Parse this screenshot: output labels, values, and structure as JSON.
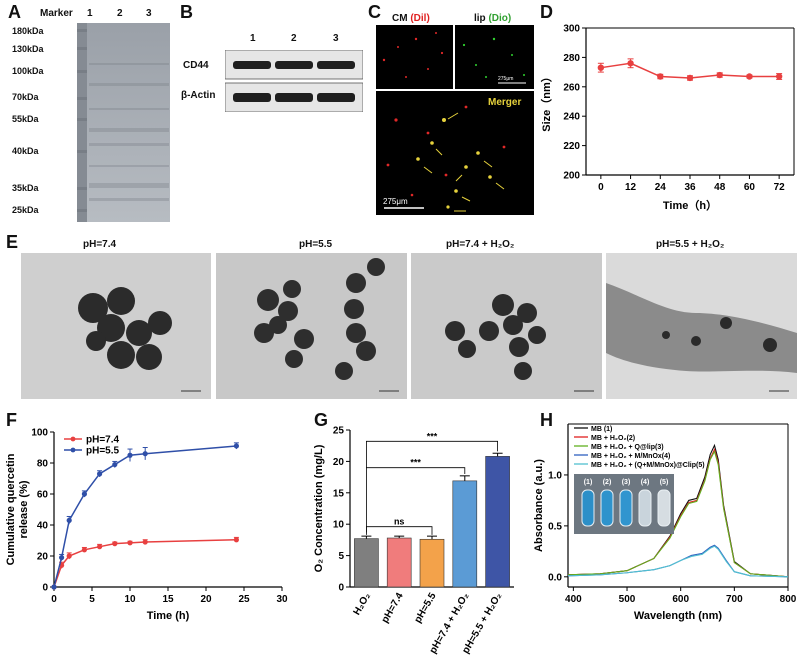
{
  "panels": {
    "A": {
      "letter": "A",
      "header": "Marker",
      "lanes": [
        "1",
        "2",
        "3"
      ],
      "markers": [
        "180kDa",
        "130kDa",
        "100kDa",
        "70kDa",
        "55kDa",
        "40kDa",
        "35kDa",
        "25kDa"
      ]
    },
    "B": {
      "letter": "B",
      "lanes": [
        "1",
        "2",
        "3"
      ],
      "rows": [
        "CD44",
        "β-Actin"
      ]
    },
    "C": {
      "letter": "C",
      "cm_label": "CM",
      "cm_dye": "(Dil)",
      "lip_label": "lip",
      "lip_dye": "(Dio)",
      "merge_label": "Merger",
      "scale_big": "275μm",
      "scale_small": "275μm"
    },
    "D": {
      "letter": "D"
    },
    "E": {
      "letter": "E",
      "titles": [
        "pH=7.4",
        "pH=5.5",
        "pH=7.4 + H₂O₂",
        "pH=5.5 + H₂O₂"
      ]
    },
    "F": {
      "letter": "F"
    },
    "G": {
      "letter": "G"
    },
    "H": {
      "letter": "H",
      "vial_labels": [
        "(1)",
        "(2)",
        "(3)",
        "(4)",
        "(5)"
      ]
    }
  },
  "chart_data": [
    {
      "id": "D",
      "type": "line",
      "xlabel": "Time（h）",
      "ylabel": "Size（nm）",
      "x": [
        0,
        12,
        24,
        36,
        48,
        60,
        72
      ],
      "y": [
        273,
        276,
        267,
        266,
        268,
        267,
        267
      ],
      "err": [
        3,
        3,
        1.5,
        1.5,
        1.5,
        1,
        2
      ],
      "xlim": [
        -6,
        78
      ],
      "ylim": [
        200,
        300
      ],
      "xticks": [
        0,
        12,
        24,
        36,
        48,
        60,
        72
      ],
      "yticks": [
        200,
        220,
        240,
        260,
        280,
        300
      ],
      "color": "#e84040"
    },
    {
      "id": "F",
      "type": "line",
      "xlabel": "Time (h)",
      "ylabel": "Cumulative quercetin release (%)",
      "xlim": [
        0,
        30
      ],
      "ylim": [
        0,
        100
      ],
      "xticks": [
        0,
        5,
        10,
        15,
        20,
        25,
        30
      ],
      "yticks": [
        0,
        20,
        40,
        60,
        80,
        100
      ],
      "legend_position": "top-left",
      "series": [
        {
          "name": "pH=7.4",
          "color": "#e84040",
          "x": [
            0,
            1,
            2,
            4,
            6,
            8,
            10,
            12,
            24
          ],
          "y": [
            0,
            14,
            20,
            24,
            26,
            28,
            28.5,
            29,
            30.5
          ],
          "err": [
            0,
            2,
            2,
            1.5,
            1.5,
            1,
            1,
            1.5,
            1.5
          ]
        },
        {
          "name": "pH=5.5",
          "color": "#2f4fa8",
          "x": [
            0,
            1,
            2,
            4,
            6,
            8,
            10,
            12,
            24
          ],
          "y": [
            0,
            19,
            43,
            60,
            73,
            79,
            85,
            86,
            91
          ],
          "err": [
            0,
            2,
            2.5,
            2,
            2,
            2,
            4,
            4,
            2
          ]
        }
      ]
    },
    {
      "id": "G",
      "type": "bar",
      "ylabel": "O₂ Concentration (mg/L)",
      "categories": [
        "H₂O₂",
        "pH=7.4",
        "pH=5.5",
        "pH=7.4 + H₂O₂",
        "pH=5.5 + H₂O₂"
      ],
      "values": [
        7.7,
        7.8,
        7.6,
        16.9,
        20.8
      ],
      "err": [
        0.4,
        0.3,
        0.5,
        0.8,
        0.5
      ],
      "colors": [
        "#7f7f7f",
        "#f07c7c",
        "#f3a24a",
        "#5b9bd5",
        "#3e55a6"
      ],
      "ylim": [
        0,
        25
      ],
      "yticks": [
        0,
        5,
        10,
        15,
        20,
        25
      ],
      "annotations": [
        {
          "label": "ns",
          "from": 0,
          "to": 2
        },
        {
          "label": "***",
          "from": 0,
          "to": 3
        },
        {
          "label": "***",
          "from": 0,
          "to": 4
        }
      ]
    },
    {
      "id": "H",
      "type": "line",
      "xlabel": "Wavelength (nm)",
      "ylabel": "Absorbance (a.u.)",
      "xlim": [
        390,
        800
      ],
      "ylim": [
        -0.1,
        1.5
      ],
      "xticks": [
        400,
        500,
        600,
        700,
        800
      ],
      "yticks": [
        0.0,
        0.5,
        1.0
      ],
      "legend_position": "top-left",
      "series": [
        {
          "name": "MB (1)",
          "color": "#111111",
          "x": [
            390,
            450,
            500,
            550,
            580,
            600,
            615,
            630,
            645,
            655,
            663,
            670,
            680,
            700,
            730,
            800
          ],
          "y": [
            0.02,
            0.03,
            0.06,
            0.18,
            0.4,
            0.62,
            0.75,
            0.77,
            0.98,
            1.2,
            1.29,
            1.15,
            0.7,
            0.15,
            0.03,
            0.0
          ]
        },
        {
          "name": "MB + H₂O₂(2)",
          "color": "#e02020",
          "x": [
            390,
            450,
            500,
            550,
            580,
            600,
            615,
            630,
            645,
            655,
            663,
            670,
            680,
            700,
            730,
            800
          ],
          "y": [
            0.02,
            0.03,
            0.06,
            0.18,
            0.39,
            0.6,
            0.73,
            0.75,
            0.95,
            1.16,
            1.25,
            1.12,
            0.68,
            0.14,
            0.03,
            0.0
          ]
        },
        {
          "name": "MB + H₂O₂ + Q@lip(3)",
          "color": "#60b020",
          "x": [
            390,
            450,
            500,
            550,
            580,
            600,
            615,
            630,
            645,
            655,
            663,
            670,
            680,
            700,
            730,
            800
          ],
          "y": [
            0.02,
            0.03,
            0.06,
            0.18,
            0.38,
            0.59,
            0.72,
            0.74,
            0.94,
            1.15,
            1.23,
            1.1,
            0.67,
            0.14,
            0.03,
            0.0
          ]
        },
        {
          "name": "MB + H₂O₂ + M/MnOx(4)",
          "color": "#3060c0",
          "x": [
            390,
            450,
            500,
            550,
            580,
            600,
            620,
            640,
            655,
            663,
            670,
            685,
            700,
            730,
            800
          ],
          "y": [
            0.01,
            0.02,
            0.04,
            0.07,
            0.11,
            0.16,
            0.21,
            0.23,
            0.29,
            0.31,
            0.28,
            0.16,
            0.05,
            0.01,
            0.0
          ]
        },
        {
          "name": "MB + H₂O₂ + (Q+M/MnOx)@Clip(5)",
          "color": "#50c0d0",
          "x": [
            390,
            450,
            500,
            550,
            580,
            600,
            620,
            640,
            655,
            663,
            670,
            685,
            700,
            730,
            800
          ],
          "y": [
            0.01,
            0.02,
            0.04,
            0.07,
            0.11,
            0.16,
            0.2,
            0.22,
            0.28,
            0.3,
            0.27,
            0.15,
            0.05,
            0.01,
            0.0
          ]
        }
      ]
    }
  ]
}
